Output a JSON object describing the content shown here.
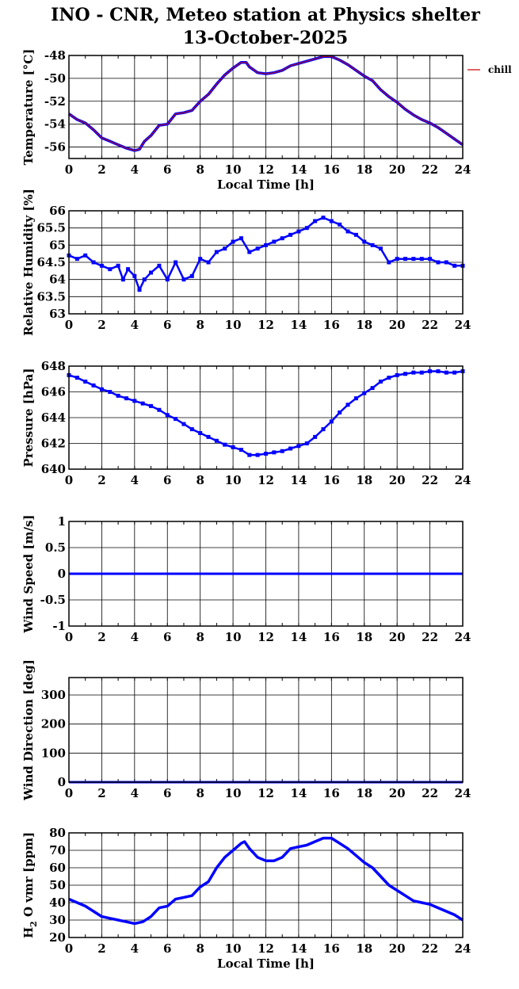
{
  "title": {
    "line1": "INO - CNR, Meteo station at Physics shelter",
    "line2": "13-October-2025"
  },
  "colors": {
    "series": "#0000ff",
    "overlay": "#cc0000",
    "grid": "#000000"
  },
  "chart_data": [
    {
      "id": "temperature",
      "type": "line",
      "ylabel": "Temperature [°C]",
      "xlabel": "Local Time [h]",
      "xlim": [
        0,
        24
      ],
      "ylim": [
        -57,
        -48
      ],
      "y_reversed": false,
      "xticks": [
        0,
        2,
        4,
        6,
        8,
        10,
        12,
        14,
        16,
        18,
        20,
        22,
        24
      ],
      "yticks": [
        -56,
        -54,
        -52,
        -50,
        -48
      ],
      "grid": true,
      "legend": {
        "position": "top-right-outside",
        "entries": [
          "chill"
        ]
      },
      "series": [
        {
          "name": "chill",
          "x": [
            0,
            0.5,
            1,
            1.5,
            2,
            2.5,
            3,
            3.5,
            4,
            4.3,
            4.6,
            5,
            5.5,
            6,
            6.5,
            7,
            7.5,
            8,
            8.5,
            9,
            9.5,
            10,
            10.5,
            10.8,
            11,
            11.5,
            12,
            12.5,
            13,
            13.5,
            14,
            14.5,
            15,
            15.5,
            16,
            16.5,
            17,
            17.5,
            18,
            18.5,
            19,
            19.5,
            20,
            20.5,
            21,
            21.5,
            22,
            22.5,
            23,
            23.5,
            24
          ],
          "y": [
            -53.1,
            -53.6,
            -53.9,
            -54.5,
            -55.2,
            -55.5,
            -55.8,
            -56.1,
            -56.3,
            -56.2,
            -55.5,
            -55,
            -54.1,
            -54,
            -53.1,
            -53,
            -52.8,
            -52,
            -51.4,
            -50.5,
            -49.7,
            -49.1,
            -48.6,
            -48.6,
            -49,
            -49.5,
            -49.6,
            -49.5,
            -49.3,
            -48.9,
            -48.7,
            -48.5,
            -48.3,
            -48.1,
            -48.1,
            -48.4,
            -48.8,
            -49.3,
            -49.8,
            -50.2,
            -51,
            -51.6,
            -52.1,
            -52.7,
            -53.2,
            -53.6,
            -53.9,
            -54.3,
            -54.8,
            -55.3,
            -55.8
          ]
        }
      ]
    },
    {
      "id": "humidity",
      "type": "scatter",
      "ylabel": "Relative Humidity [%]",
      "xlim": [
        0,
        24
      ],
      "ylim": [
        63,
        66
      ],
      "xticks": [
        0,
        2,
        4,
        6,
        8,
        10,
        12,
        14,
        16,
        18,
        20,
        22,
        24
      ],
      "yticks": [
        63,
        63.5,
        64,
        64.5,
        65,
        65.5,
        66
      ],
      "grid": true,
      "series": [
        {
          "x": [
            0,
            0.5,
            1,
            1.5,
            2,
            2.5,
            3,
            3.3,
            3.6,
            4,
            4.3,
            4.6,
            5,
            5.5,
            6,
            6.5,
            7,
            7.5,
            8,
            8.5,
            9,
            9.5,
            10,
            10.5,
            11,
            11.5,
            12,
            12.5,
            13,
            13.5,
            14,
            14.5,
            15,
            15.5,
            16,
            16.5,
            17,
            17.5,
            18,
            18.5,
            19,
            19.5,
            20,
            20.5,
            21,
            21.5,
            22,
            22.5,
            23,
            23.5,
            24
          ],
          "y": [
            64.7,
            64.6,
            64.7,
            64.5,
            64.4,
            64.3,
            64.4,
            64.0,
            64.3,
            64.1,
            63.7,
            64.0,
            64.2,
            64.4,
            64.0,
            64.5,
            64.0,
            64.1,
            64.6,
            64.5,
            64.8,
            64.9,
            65.1,
            65.2,
            64.8,
            64.9,
            65.0,
            65.1,
            65.2,
            65.3,
            65.4,
            65.5,
            65.7,
            65.8,
            65.7,
            65.6,
            65.4,
            65.3,
            65.1,
            65.0,
            64.9,
            64.5,
            64.6,
            64.6,
            64.6,
            64.6,
            64.6,
            64.5,
            64.5,
            64.4,
            64.4
          ]
        }
      ]
    },
    {
      "id": "pressure",
      "type": "scatter",
      "ylabel": "Pressure [hPa]",
      "xlim": [
        0,
        24
      ],
      "ylim": [
        640,
        648
      ],
      "xticks": [
        0,
        2,
        4,
        6,
        8,
        10,
        12,
        14,
        16,
        18,
        20,
        22,
        24
      ],
      "yticks": [
        640,
        642,
        644,
        646,
        648
      ],
      "grid": true,
      "series": [
        {
          "x": [
            0,
            0.5,
            1,
            1.5,
            2,
            2.5,
            3,
            3.5,
            4,
            4.5,
            5,
            5.5,
            6,
            6.5,
            7,
            7.5,
            8,
            8.5,
            9,
            9.5,
            10,
            10.5,
            11,
            11.5,
            12,
            12.5,
            13,
            13.5,
            14,
            14.5,
            15,
            15.5,
            16,
            16.5,
            17,
            17.5,
            18,
            18.5,
            19,
            19.5,
            20,
            20.5,
            21,
            21.5,
            22,
            22.5,
            23,
            23.5,
            24
          ],
          "y": [
            647.3,
            647.1,
            646.8,
            646.5,
            646.2,
            646,
            645.7,
            645.5,
            645.3,
            645.1,
            644.9,
            644.6,
            644.2,
            643.9,
            643.5,
            643.1,
            642.8,
            642.5,
            642.2,
            641.9,
            641.7,
            641.5,
            641.1,
            641.1,
            641.2,
            641.3,
            641.4,
            641.6,
            641.8,
            642,
            642.5,
            643.1,
            643.7,
            644.4,
            645,
            645.5,
            645.9,
            646.3,
            646.8,
            647.1,
            647.3,
            647.4,
            647.5,
            647.5,
            647.6,
            647.6,
            647.5,
            647.5,
            647.6
          ]
        }
      ]
    },
    {
      "id": "wind_speed",
      "type": "line",
      "ylabel": "Wind Speed [m/s]",
      "xlim": [
        0,
        24
      ],
      "ylim": [
        -1,
        1
      ],
      "xticks": [
        0,
        2,
        4,
        6,
        8,
        10,
        12,
        14,
        16,
        18,
        20,
        22,
        24
      ],
      "yticks": [
        -1,
        -0.5,
        0,
        0.5,
        1
      ],
      "grid": true,
      "series": [
        {
          "x": [
            0,
            24
          ],
          "y": [
            0,
            0
          ]
        }
      ]
    },
    {
      "id": "wind_direction",
      "type": "line",
      "ylabel": "Wind Direction [deg]",
      "xlim": [
        0,
        24
      ],
      "ylim": [
        0,
        360
      ],
      "xticks": [
        0,
        2,
        4,
        6,
        8,
        10,
        12,
        14,
        16,
        18,
        20,
        22,
        24
      ],
      "yticks": [
        0,
        100,
        200,
        300
      ],
      "grid": true,
      "series": [
        {
          "x": [
            0,
            24
          ],
          "y": [
            0,
            0
          ]
        }
      ]
    },
    {
      "id": "h2o",
      "type": "line",
      "ylabel_main": "H",
      "ylabel_sub": "2",
      "ylabel_rest": "O vmr [ppm]",
      "xlabel": "Local Time [h]",
      "xlim": [
        0,
        24
      ],
      "ylim": [
        20,
        80
      ],
      "xticks": [
        0,
        2,
        4,
        6,
        8,
        10,
        12,
        14,
        16,
        18,
        20,
        22,
        24
      ],
      "yticks": [
        20,
        30,
        40,
        50,
        60,
        70,
        80
      ],
      "grid": true,
      "series": [
        {
          "x": [
            0,
            0.5,
            1,
            1.5,
            2,
            2.5,
            3,
            3.5,
            4,
            4.5,
            5,
            5.5,
            6,
            6.5,
            7,
            7.5,
            8,
            8.5,
            9,
            9.5,
            10,
            10.5,
            10.7,
            11,
            11.5,
            12,
            12.5,
            13,
            13.5,
            14,
            14.5,
            15,
            15.5,
            16,
            16.5,
            17,
            17.5,
            18,
            18.5,
            19,
            19.5,
            20,
            20.5,
            21,
            21.5,
            22,
            22.5,
            23,
            23.5,
            24
          ],
          "y": [
            42,
            40,
            38,
            35,
            32,
            31,
            30,
            29,
            28,
            29,
            32,
            37,
            38,
            42,
            43,
            44,
            49,
            52,
            60,
            66,
            70,
            74,
            75,
            71,
            66,
            64,
            64,
            66,
            71,
            72,
            73,
            75,
            77,
            77,
            74,
            71,
            67,
            63,
            60,
            55,
            50,
            47,
            44,
            41,
            40,
            39,
            37,
            35,
            33,
            30
          ]
        }
      ]
    }
  ]
}
